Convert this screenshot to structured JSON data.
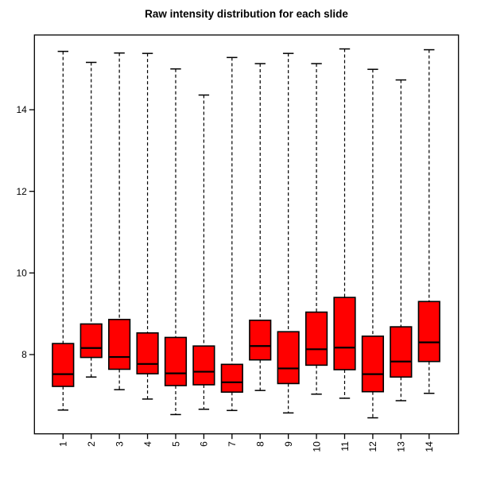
{
  "chart_data": {
    "type": "boxplot",
    "title": "Raw intensity distribution for each slide",
    "xlabel": "",
    "ylabel": "",
    "categories": [
      "1",
      "2",
      "3",
      "4",
      "5",
      "6",
      "7",
      "8",
      "9",
      "10",
      "11",
      "12",
      "13",
      "14"
    ],
    "yticks": [
      8,
      10,
      12,
      14
    ],
    "ylim": [
      6.05,
      15.85
    ],
    "grid": false,
    "legend": false,
    "box_fill_color": "#FF0000",
    "stroke_color": "#000000",
    "whisker_style": "dashed",
    "boxes": [
      {
        "label": "1",
        "whisker_low": 6.64,
        "q1": 7.22,
        "median": 7.52,
        "q3": 8.27,
        "whisker_high": 15.43
      },
      {
        "label": "2",
        "whisker_low": 7.45,
        "q1": 7.93,
        "median": 8.16,
        "q3": 8.75,
        "whisker_high": 15.16
      },
      {
        "label": "3",
        "whisker_low": 7.14,
        "q1": 7.64,
        "median": 7.94,
        "q3": 8.86,
        "whisker_high": 15.39
      },
      {
        "label": "4",
        "whisker_low": 6.91,
        "q1": 7.53,
        "median": 7.77,
        "q3": 8.53,
        "whisker_high": 15.38
      },
      {
        "label": "5",
        "whisker_low": 6.53,
        "q1": 7.24,
        "median": 7.54,
        "q3": 8.42,
        "whisker_high": 15.0
      },
      {
        "label": "6",
        "whisker_low": 6.66,
        "q1": 7.26,
        "median": 7.58,
        "q3": 8.21,
        "whisker_high": 14.36
      },
      {
        "label": "7",
        "whisker_low": 6.63,
        "q1": 7.08,
        "median": 7.32,
        "q3": 7.76,
        "whisker_high": 15.28
      },
      {
        "label": "8",
        "whisker_low": 7.12,
        "q1": 7.87,
        "median": 8.21,
        "q3": 8.84,
        "whisker_high": 15.13
      },
      {
        "label": "9",
        "whisker_low": 6.57,
        "q1": 7.29,
        "median": 7.66,
        "q3": 8.56,
        "whisker_high": 15.38
      },
      {
        "label": "10",
        "whisker_low": 7.03,
        "q1": 7.74,
        "median": 8.13,
        "q3": 9.04,
        "whisker_high": 15.13
      },
      {
        "label": "11",
        "whisker_low": 6.93,
        "q1": 7.63,
        "median": 8.17,
        "q3": 9.4,
        "whisker_high": 15.49
      },
      {
        "label": "12",
        "whisker_low": 6.45,
        "q1": 7.09,
        "median": 7.52,
        "q3": 8.45,
        "whisker_high": 14.99
      },
      {
        "label": "13",
        "whisker_low": 6.87,
        "q1": 7.45,
        "median": 7.83,
        "q3": 8.68,
        "whisker_high": 14.73
      },
      {
        "label": "14",
        "whisker_low": 7.05,
        "q1": 7.83,
        "median": 8.3,
        "q3": 9.3,
        "whisker_high": 15.47
      }
    ]
  }
}
